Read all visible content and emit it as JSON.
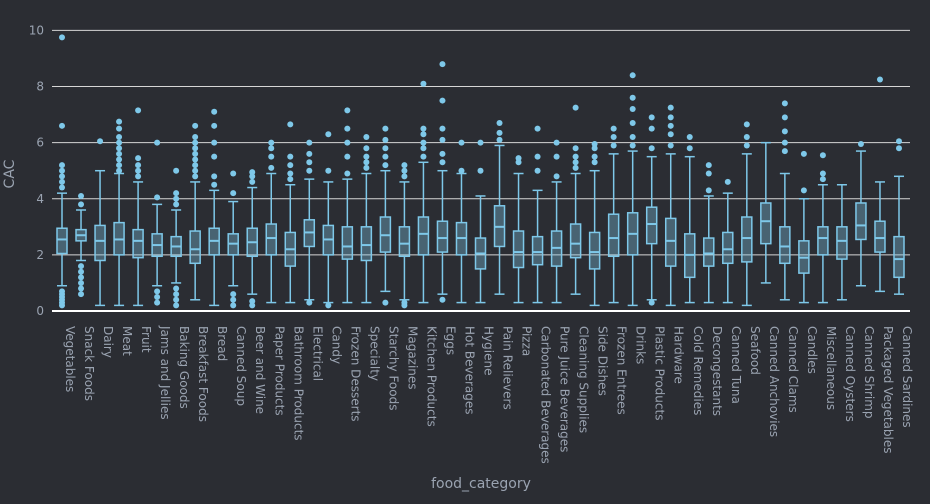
{
  "chart_data": {
    "type": "box",
    "xlabel": "food_category",
    "ylabel": "CAC",
    "ylim": [
      0,
      10.3
    ],
    "yticks": [
      0,
      2,
      4,
      6,
      8,
      10
    ],
    "grid": true,
    "box_color": "#7ec8e9",
    "background": "#2b2d33",
    "categories": [
      "Vegetables",
      "Snack Foods",
      "Dairy",
      "Meat",
      "Fruit",
      "Jams and Jellies",
      "Baking Goods",
      "Breakfast Foods",
      "Bread",
      "Canned Soup",
      "Beer and Wine",
      "Paper Products",
      "Bathroom Products",
      "Electrical",
      "Candy",
      "Frozen Desserts",
      "Specialty",
      "Starchy Foods",
      "Magazines",
      "Kitchen Products",
      "Eggs",
      "Hot Beverages",
      "Hygiene",
      "Pain Relievers",
      "Pizza",
      "Carbonated Beverages",
      "Pure Juice Beverages",
      "Cleaning Supplies",
      "Side Dishes",
      "Frozen Entrees",
      "Drinks",
      "Plastic Products",
      "Hardware",
      "Cold Remedies",
      "Decongestants",
      "Canned Tuna",
      "Seafood",
      "Canned Anchovies",
      "Canned Clams",
      "Candles",
      "Miscellaneous",
      "Canned Oysters",
      "Canned Shrimp",
      "Packaged Vegetables",
      "Canned Sardines"
    ],
    "boxes": [
      {
        "lf": 0.9,
        "q1": 2.05,
        "med": 2.55,
        "q3": 2.95,
        "uf": 4.2,
        "out": [
          0.2,
          0.3,
          0.4,
          0.5,
          0.6,
          0.7,
          4.4,
          4.6,
          4.8,
          5.0,
          5.2,
          6.6,
          9.75
        ]
      },
      {
        "lf": 1.8,
        "q1": 2.5,
        "med": 2.7,
        "q3": 2.9,
        "uf": 3.6,
        "out": [
          0.6,
          0.8,
          1.0,
          1.2,
          1.4,
          1.6,
          3.8,
          4.1
        ]
      },
      {
        "lf": 0.2,
        "q1": 1.8,
        "med": 2.5,
        "q3": 3.05,
        "uf": 5.0,
        "out": [
          6.05
        ]
      },
      {
        "lf": 0.2,
        "q1": 2.0,
        "med": 2.55,
        "q3": 3.15,
        "uf": 4.9,
        "out": [
          5.0,
          5.2,
          5.4,
          5.6,
          5.8,
          6.0,
          6.2,
          6.5,
          6.75
        ]
      },
      {
        "lf": 0.2,
        "q1": 1.9,
        "med": 2.5,
        "q3": 2.9,
        "uf": 4.6,
        "out": [
          4.8,
          5.0,
          5.2,
          5.45,
          7.15
        ]
      },
      {
        "lf": 0.9,
        "q1": 1.95,
        "med": 2.35,
        "q3": 2.75,
        "uf": 3.8,
        "out": [
          0.3,
          0.5,
          0.7,
          4.05,
          6.0
        ]
      },
      {
        "lf": 1.0,
        "q1": 1.95,
        "med": 2.3,
        "q3": 2.65,
        "uf": 3.6,
        "out": [
          0.2,
          0.4,
          0.6,
          0.8,
          3.8,
          4.0,
          4.2,
          5.0
        ]
      },
      {
        "lf": 0.4,
        "q1": 1.7,
        "med": 2.2,
        "q3": 2.85,
        "uf": 4.6,
        "out": [
          4.8,
          5.0,
          5.2,
          5.4,
          5.6,
          5.8,
          6.0,
          6.2,
          6.6
        ]
      },
      {
        "lf": 0.2,
        "q1": 2.0,
        "med": 2.5,
        "q3": 2.95,
        "uf": 4.3,
        "out": [
          4.5,
          4.8,
          5.5,
          6.0,
          6.6,
          7.1
        ]
      },
      {
        "lf": 0.9,
        "q1": 2.0,
        "med": 2.4,
        "q3": 2.75,
        "uf": 3.9,
        "out": [
          0.2,
          0.4,
          0.6,
          4.2,
          4.9
        ]
      },
      {
        "lf": 0.6,
        "q1": 1.95,
        "med": 2.45,
        "q3": 2.95,
        "uf": 4.4,
        "out": [
          0.2,
          0.35,
          4.6,
          4.8,
          4.95
        ]
      },
      {
        "lf": 0.3,
        "q1": 2.0,
        "med": 2.6,
        "q3": 3.1,
        "uf": 4.9,
        "out": [
          5.1,
          5.5,
          5.8,
          6.0
        ]
      },
      {
        "lf": 0.3,
        "q1": 1.6,
        "med": 2.2,
        "q3": 2.8,
        "uf": 4.5,
        "out": [
          4.7,
          4.9,
          5.2,
          5.5,
          6.65
        ]
      },
      {
        "lf": 0.4,
        "q1": 2.3,
        "med": 2.8,
        "q3": 3.25,
        "uf": 4.7,
        "out": [
          0.3,
          5.0,
          5.3,
          5.6,
          6.0
        ]
      },
      {
        "lf": 0.3,
        "q1": 2.0,
        "med": 2.55,
        "q3": 3.05,
        "uf": 4.6,
        "out": [
          0.2,
          5.0,
          6.3
        ]
      },
      {
        "lf": 0.3,
        "q1": 1.85,
        "med": 2.3,
        "q3": 3.0,
        "uf": 4.7,
        "out": [
          4.9,
          5.5,
          6.0,
          6.5,
          7.15
        ]
      },
      {
        "lf": 0.3,
        "q1": 1.8,
        "med": 2.35,
        "q3": 3.0,
        "uf": 4.9,
        "out": [
          5.1,
          5.3,
          5.5,
          5.8,
          6.2
        ]
      },
      {
        "lf": 0.7,
        "q1": 2.1,
        "med": 2.7,
        "q3": 3.35,
        "uf": 5.0,
        "out": [
          0.3,
          5.2,
          5.5,
          5.8,
          6.1,
          6.5
        ]
      },
      {
        "lf": 0.4,
        "q1": 1.95,
        "med": 2.4,
        "q3": 3.0,
        "uf": 4.6,
        "out": [
          0.2,
          0.3,
          4.8,
          5.0,
          5.2
        ]
      },
      {
        "lf": 0.3,
        "q1": 2.0,
        "med": 2.75,
        "q3": 3.35,
        "uf": 5.3,
        "out": [
          5.5,
          5.8,
          6.0,
          6.3,
          6.5,
          8.1
        ]
      },
      {
        "lf": 0.6,
        "q1": 2.1,
        "med": 2.6,
        "q3": 3.2,
        "uf": 5.0,
        "out": [
          0.4,
          5.3,
          5.6,
          6.1,
          6.5,
          7.5,
          8.8
        ]
      },
      {
        "lf": 0.3,
        "q1": 2.0,
        "med": 2.6,
        "q3": 3.15,
        "uf": 4.9,
        "out": [
          5.0,
          6.0
        ]
      },
      {
        "lf": 0.3,
        "q1": 1.5,
        "med": 2.05,
        "q3": 2.6,
        "uf": 4.1,
        "out": [
          5.0,
          6.0
        ]
      },
      {
        "lf": 0.6,
        "q1": 2.3,
        "med": 3.0,
        "q3": 3.75,
        "uf": 5.9,
        "out": [
          6.1,
          6.35,
          6.7
        ]
      },
      {
        "lf": 0.3,
        "q1": 1.55,
        "med": 2.1,
        "q3": 2.85,
        "uf": 4.9,
        "out": [
          5.3,
          5.45
        ]
      },
      {
        "lf": 0.3,
        "q1": 1.65,
        "med": 2.1,
        "q3": 2.65,
        "uf": 4.3,
        "out": [
          5.0,
          5.5,
          6.5
        ]
      },
      {
        "lf": 0.3,
        "q1": 1.6,
        "med": 2.25,
        "q3": 2.85,
        "uf": 4.6,
        "out": [
          4.8,
          5.5,
          6.0
        ]
      },
      {
        "lf": 0.6,
        "q1": 1.9,
        "med": 2.4,
        "q3": 3.1,
        "uf": 4.9,
        "out": [
          5.1,
          5.3,
          5.5,
          5.8,
          7.25
        ]
      },
      {
        "lf": 0.2,
        "q1": 1.5,
        "med": 2.1,
        "q3": 2.8,
        "uf": 5.0,
        "out": [
          5.3,
          5.5,
          5.8,
          5.95
        ]
      },
      {
        "lf": 0.3,
        "q1": 1.95,
        "med": 2.6,
        "q3": 3.45,
        "uf": 5.6,
        "out": [
          5.9,
          6.2,
          6.5
        ]
      },
      {
        "lf": 0.2,
        "q1": 2.0,
        "med": 2.75,
        "q3": 3.5,
        "uf": 5.7,
        "out": [
          5.9,
          6.2,
          6.7,
          7.2,
          7.6,
          8.4
        ]
      },
      {
        "lf": 0.4,
        "q1": 2.4,
        "med": 3.1,
        "q3": 3.7,
        "uf": 5.5,
        "out": [
          5.8,
          6.5,
          6.9,
          0.3
        ]
      },
      {
        "lf": 0.2,
        "q1": 1.6,
        "med": 2.5,
        "q3": 3.3,
        "uf": 5.6,
        "out": [
          5.9,
          6.3,
          6.6,
          6.9,
          7.25
        ]
      },
      {
        "lf": 0.3,
        "q1": 1.2,
        "med": 2.0,
        "q3": 2.75,
        "uf": 5.5,
        "out": [
          5.8,
          6.2
        ]
      },
      {
        "lf": 0.3,
        "q1": 1.6,
        "med": 2.05,
        "q3": 2.6,
        "uf": 4.1,
        "out": [
          4.3,
          4.9,
          5.2
        ]
      },
      {
        "lf": 0.3,
        "q1": 1.7,
        "med": 2.2,
        "q3": 2.8,
        "uf": 4.2,
        "out": [
          4.6
        ]
      },
      {
        "lf": 0.2,
        "q1": 1.75,
        "med": 2.6,
        "q3": 3.35,
        "uf": 5.6,
        "out": [
          5.9,
          6.2,
          6.65
        ]
      },
      {
        "lf": 1.0,
        "q1": 2.4,
        "med": 3.2,
        "q3": 3.85,
        "uf": 6.0,
        "out": []
      },
      {
        "lf": 0.4,
        "q1": 1.7,
        "med": 2.3,
        "q3": 3.0,
        "uf": 4.9,
        "out": [
          5.7,
          6.0,
          6.4,
          6.9,
          7.4
        ]
      },
      {
        "lf": 0.3,
        "q1": 1.35,
        "med": 1.9,
        "q3": 2.5,
        "uf": 4.0,
        "out": [
          4.3,
          5.6
        ]
      },
      {
        "lf": 0.3,
        "q1": 2.0,
        "med": 2.6,
        "q3": 3.0,
        "uf": 4.5,
        "out": [
          4.7,
          4.9,
          5.55
        ]
      },
      {
        "lf": 0.4,
        "q1": 1.85,
        "med": 2.5,
        "q3": 3.0,
        "uf": 4.5,
        "out": []
      },
      {
        "lf": 0.9,
        "q1": 2.55,
        "med": 3.05,
        "q3": 3.85,
        "uf": 5.7,
        "out": [
          5.95
        ]
      },
      {
        "lf": 0.7,
        "q1": 2.1,
        "med": 2.6,
        "q3": 3.2,
        "uf": 4.6,
        "out": [
          8.25
        ]
      },
      {
        "lf": 0.6,
        "q1": 1.2,
        "med": 1.85,
        "q3": 2.65,
        "uf": 4.8,
        "out": [
          5.8,
          6.05
        ]
      }
    ]
  }
}
